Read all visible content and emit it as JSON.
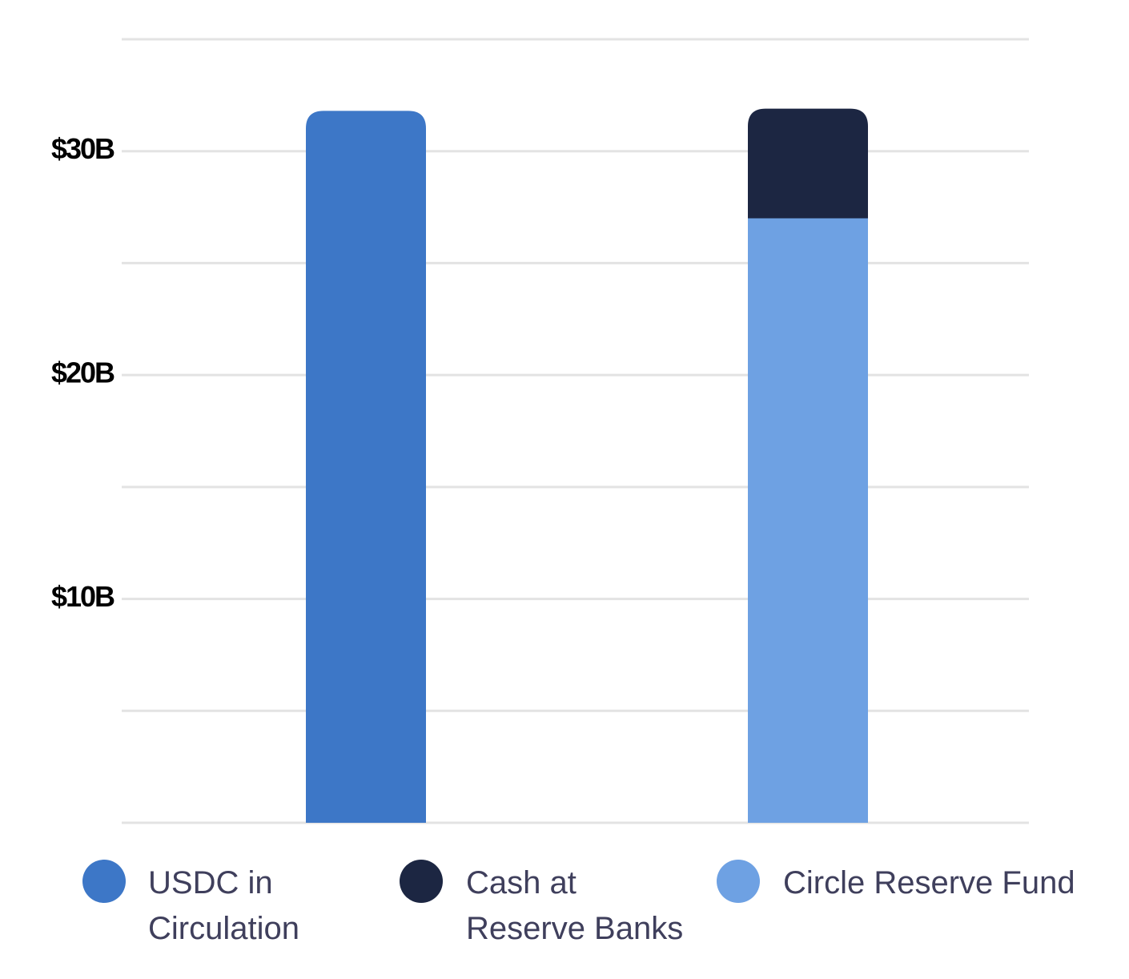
{
  "chart_data": {
    "type": "bar",
    "stacked": true,
    "categories": [
      null,
      null
    ],
    "series": [
      {
        "name": "USDC in Circulation",
        "color": "#3d77c7",
        "values": [
          31.8,
          null
        ]
      },
      {
        "name": "Circle Reserve Fund",
        "color": "#6ea1e3",
        "values": [
          null,
          27.0
        ]
      },
      {
        "name": "Cash at Reserve Banks",
        "color": "#1c2642",
        "values": [
          null,
          4.9
        ]
      }
    ],
    "legend_order": [
      0,
      2,
      1
    ],
    "ylim": [
      0,
      35
    ],
    "yticks": [
      {
        "value": 10,
        "label": "$10B"
      },
      {
        "value": 20,
        "label": "$20B"
      },
      {
        "value": 30,
        "label": "$30B"
      }
    ],
    "grid_lines": [
      0,
      5,
      10,
      15,
      20,
      25,
      30,
      35
    ],
    "grid": true
  }
}
